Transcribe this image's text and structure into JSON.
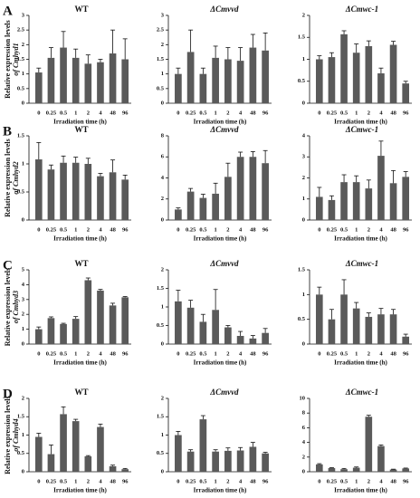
{
  "panel_labels": [
    "A",
    "B",
    "C",
    "D"
  ],
  "chart_data": [
    {
      "type": "bar",
      "title": "WT",
      "ylabel": [
        "Relative expression levels",
        "of Cmhyd1"
      ],
      "xlabel": "Irradiation time (h)",
      "categories": [
        "0",
        "0.25",
        "0.5",
        "1",
        "2",
        "4",
        "48",
        "96"
      ],
      "values": [
        1.05,
        1.55,
        1.9,
        1.55,
        1.35,
        1.4,
        1.7,
        1.5
      ],
      "errors": [
        0.15,
        0.35,
        0.55,
        0.3,
        0.3,
        0.1,
        0.8,
        0.7
      ],
      "color": "#5a5a5a",
      "ylim": [
        0,
        3
      ],
      "yticks": [
        0,
        0.5,
        1,
        1.5,
        2,
        2.5,
        3
      ]
    },
    {
      "type": "bar",
      "title": "ΔCmvvd",
      "xlabel": "Irradiation time (h)",
      "categories": [
        "0",
        "0.25",
        "0.5",
        "1",
        "2",
        "4",
        "48",
        "96"
      ],
      "values": [
        1.0,
        1.75,
        1.0,
        1.55,
        1.5,
        1.45,
        1.9,
        1.8
      ],
      "errors": [
        0.2,
        0.75,
        0.2,
        0.4,
        0.4,
        0.45,
        0.45,
        0.6
      ],
      "color": "#5a5a5a",
      "ylim": [
        0,
        3
      ],
      "yticks": [
        0,
        0.5,
        1,
        1.5,
        2,
        2.5,
        3
      ]
    },
    {
      "type": "bar",
      "title": "ΔCmwc-1",
      "xlabel": "Irradiation time (h)",
      "categories": [
        "0",
        "0.25",
        "0.5",
        "1",
        "2",
        "4",
        "48",
        "96"
      ],
      "values": [
        1.0,
        1.05,
        1.57,
        1.15,
        1.3,
        0.68,
        1.33,
        0.45
      ],
      "errors": [
        0.08,
        0.1,
        0.08,
        0.2,
        0.12,
        0.12,
        0.08,
        0.05
      ],
      "color": "#5a5a5a",
      "ylim": [
        0,
        2
      ],
      "yticks": [
        0,
        0.5,
        1,
        1.5,
        2
      ]
    },
    {
      "type": "bar",
      "title": "WT",
      "ylabel": [
        "Relative expression levels",
        "of Cmhyd2"
      ],
      "xlabel": "Irradiation time (h)",
      "categories": [
        "0",
        "0.25",
        "0.5",
        "1",
        "2",
        "4",
        "48",
        "96"
      ],
      "values": [
        1.08,
        0.9,
        1.02,
        1.02,
        1.0,
        0.78,
        0.85,
        0.72
      ],
      "errors": [
        0.3,
        0.08,
        0.12,
        0.1,
        0.1,
        0.05,
        0.22,
        0.08
      ],
      "color": "#5a5a5a",
      "ylim": [
        0,
        1.5
      ],
      "yticks": [
        0,
        0.5,
        1,
        1.5
      ]
    },
    {
      "type": "bar",
      "title": "ΔCmvvd",
      "xlabel": "Irradiation time (h)",
      "categories": [
        "0",
        "0.25",
        "0.5",
        "1",
        "2",
        "4",
        "48",
        "96"
      ],
      "values": [
        1.0,
        2.7,
        2.1,
        2.5,
        4.1,
        6.0,
        6.0,
        5.4
      ],
      "errors": [
        0.15,
        0.3,
        0.35,
        1.0,
        1.3,
        0.45,
        0.5,
        1.2
      ],
      "color": "#5a5a5a",
      "ylim": [
        0,
        8
      ],
      "yticks": [
        0,
        2,
        4,
        6,
        8
      ]
    },
    {
      "type": "bar",
      "title": "ΔCmwc-1",
      "xlabel": "Irradiation time (h)",
      "categories": [
        "0",
        "0.25",
        "0.5",
        "1",
        "2",
        "4",
        "48",
        "96"
      ],
      "values": [
        1.1,
        0.95,
        1.8,
        1.8,
        1.5,
        3.05,
        1.75,
        2.05
      ],
      "errors": [
        0.45,
        0.2,
        0.35,
        0.3,
        0.4,
        0.7,
        0.6,
        0.25
      ],
      "color": "#5a5a5a",
      "ylim": [
        0,
        4
      ],
      "yticks": [
        0,
        1,
        2,
        3,
        4
      ]
    },
    {
      "type": "bar",
      "title": "WT",
      "ylabel": [
        "Relative expression levels",
        "of Cmhyd3"
      ],
      "xlabel": "Irradiation time (h)",
      "categories": [
        "0",
        "0.25",
        "0.5",
        "1",
        "2",
        "4",
        "48",
        "96"
      ],
      "values": [
        1.0,
        1.75,
        1.35,
        1.7,
        4.3,
        3.6,
        2.6,
        3.15
      ],
      "errors": [
        0.15,
        0.08,
        0.05,
        0.15,
        0.15,
        0.08,
        0.15,
        0.05
      ],
      "color": "#5a5a5a",
      "ylim": [
        0,
        5
      ],
      "yticks": [
        0,
        1,
        2,
        3,
        4,
        5
      ]
    },
    {
      "type": "bar",
      "title": "ΔCmvvd",
      "xlabel": "Irradiation time (h)",
      "categories": [
        "0",
        "0.25",
        "0.5",
        "1",
        "2",
        "4",
        "48",
        "96"
      ],
      "values": [
        1.15,
        0.98,
        0.6,
        0.92,
        0.45,
        0.22,
        0.15,
        0.3
      ],
      "errors": [
        0.3,
        0.2,
        0.2,
        0.55,
        0.05,
        0.12,
        0.08,
        0.12
      ],
      "color": "#5a5a5a",
      "ylim": [
        0,
        2
      ],
      "yticks": [
        0,
        0.5,
        1,
        1.5,
        2
      ]
    },
    {
      "type": "bar",
      "title": "ΔCmwc-1",
      "xlabel": "Irradiation time (h)",
      "categories": [
        "0",
        "0.25",
        "0.5",
        "1",
        "2",
        "4",
        "48",
        "96"
      ],
      "values": [
        1.0,
        0.5,
        1.0,
        0.72,
        0.55,
        0.6,
        0.6,
        0.15
      ],
      "errors": [
        0.15,
        0.2,
        0.3,
        0.12,
        0.08,
        0.12,
        0.1,
        0.05
      ],
      "color": "#5a5a5a",
      "ylim": [
        0,
        1.5
      ],
      "yticks": [
        0,
        0.5,
        1,
        1.5
      ]
    },
    {
      "type": "bar",
      "title": "WT",
      "ylabel": [
        "Relative expression levels",
        "of Cmhyd4"
      ],
      "xlabel": "Irradiation time (h)",
      "categories": [
        "0",
        "0.25",
        "0.5",
        "1",
        "2",
        "4",
        "48",
        "96"
      ],
      "values": [
        0.95,
        0.48,
        1.57,
        1.38,
        0.42,
        1.22,
        0.15,
        0.07
      ],
      "errors": [
        0.1,
        0.25,
        0.2,
        0.05,
        0.02,
        0.08,
        0.03,
        0.02
      ],
      "color": "#5a5a5a",
      "ylim": [
        0,
        2
      ],
      "yticks": [
        0,
        0.5,
        1,
        1.5,
        2
      ]
    },
    {
      "type": "bar",
      "title": "ΔCmvvd",
      "xlabel": "Irradiation time (h)",
      "categories": [
        "0",
        "0.25",
        "0.5",
        "1",
        "2",
        "4",
        "48",
        "96"
      ],
      "values": [
        1.0,
        0.55,
        1.43,
        0.55,
        0.57,
        0.58,
        0.68,
        0.5
      ],
      "errors": [
        0.1,
        0.05,
        0.1,
        0.05,
        0.08,
        0.08,
        0.12,
        0.03
      ],
      "color": "#5a5a5a",
      "ylim": [
        0,
        2
      ],
      "yticks": [
        0,
        0.5,
        1,
        1.5,
        2
      ]
    },
    {
      "type": "bar",
      "title": "ΔCmwc-1",
      "xlabel": "Irradiation time (h)",
      "categories": [
        "0",
        "0.25",
        "0.5",
        "1",
        "2",
        "4",
        "48",
        "96"
      ],
      "values": [
        1.0,
        0.5,
        0.35,
        0.55,
        7.5,
        3.5,
        0.3,
        0.45
      ],
      "errors": [
        0.1,
        0.05,
        0.1,
        0.1,
        0.2,
        0.15,
        0.05,
        0.05
      ],
      "color": "#5a5a5a",
      "ylim": [
        0,
        10
      ],
      "yticks": [
        0,
        2,
        4,
        6,
        8,
        10
      ]
    }
  ]
}
